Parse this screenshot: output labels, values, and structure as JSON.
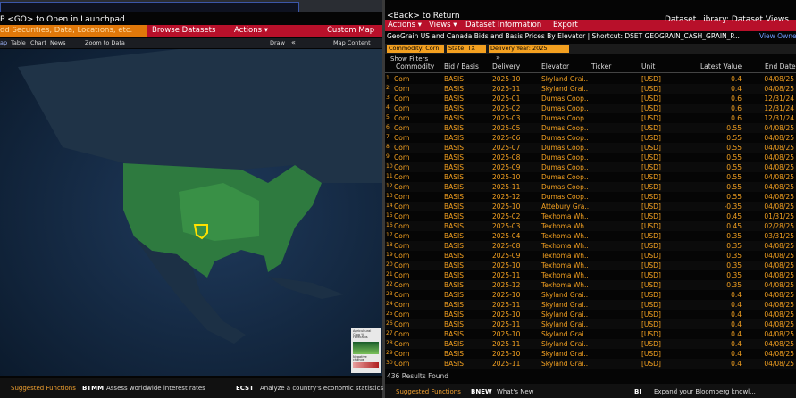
{
  "left": {
    "launchpad": "P <GO> to Open in Launchpad",
    "search_placeholder": "dd Securities, Data, Locations, etc.",
    "browse": "Browse Datasets",
    "actions": "Actions ▾",
    "custom_map": "Custom Map",
    "tabs": [
      "ap",
      "Table",
      "Chart",
      "News"
    ],
    "zoom": "Zoom to Data",
    "draw": "Draw",
    "collapse": "«",
    "map_content": "Map Content",
    "legend": {
      "title": "Agricultural Crop % Forecasts",
      "subtitle": "Negative change"
    },
    "footer": {
      "label": "Suggested Functions",
      "items": [
        {
          "code": "BTMM",
          "text": "Assess worldwide interest rates"
        },
        {
          "code": "ECST",
          "text": "Analyze a country's economic statistics"
        }
      ]
    }
  },
  "right": {
    "back": "<Back> to Return",
    "menu": [
      "Actions ▾",
      "Views ▾",
      "Dataset Information",
      "Export"
    ],
    "library": "Dataset Library: Dataset Views",
    "dataset": "GeoGrain US and Canada Bids and Basis Prices By Elevator | Shortcut: DSET GEOGRAIN_CASH_GRAIN_P...",
    "view_owner": "View Owne",
    "filters": [
      "Commodity: Corn",
      "State: TX",
      "Delivery Year: 2025"
    ],
    "show_filters": "Show Filters",
    "expand": "»",
    "table": {
      "headers": [
        "Commodity",
        "Bid / Basis",
        "Delivery",
        "Elevator",
        "Ticker",
        "Unit",
        "Latest Value",
        "End Date"
      ],
      "rows": [
        [
          "1",
          "Corn",
          "BASIS",
          "2025-10",
          "Skyland Grai..",
          "[USD]",
          "0.4",
          "04/08/25"
        ],
        [
          "2",
          "Corn",
          "BASIS",
          "2025-11",
          "Skyland Grai..",
          "[USD]",
          "0.4",
          "04/08/25"
        ],
        [
          "3",
          "Corn",
          "BASIS",
          "2025-01",
          "Dumas Coop..",
          "[USD]",
          "0.6",
          "12/31/24"
        ],
        [
          "4",
          "Corn",
          "BASIS",
          "2025-02",
          "Dumas Coop..",
          "[USD]",
          "0.6",
          "12/31/24"
        ],
        [
          "5",
          "Corn",
          "BASIS",
          "2025-03",
          "Dumas Coop..",
          "[USD]",
          "0.6",
          "12/31/24"
        ],
        [
          "6",
          "Corn",
          "BASIS",
          "2025-05",
          "Dumas Coop..",
          "[USD]",
          "0.55",
          "04/08/25"
        ],
        [
          "7",
          "Corn",
          "BASIS",
          "2025-06",
          "Dumas Coop..",
          "[USD]",
          "0.55",
          "04/08/25"
        ],
        [
          "8",
          "Corn",
          "BASIS",
          "2025-07",
          "Dumas Coop..",
          "[USD]",
          "0.55",
          "04/08/25"
        ],
        [
          "9",
          "Corn",
          "BASIS",
          "2025-08",
          "Dumas Coop..",
          "[USD]",
          "0.55",
          "04/08/25"
        ],
        [
          "10",
          "Corn",
          "BASIS",
          "2025-09",
          "Dumas Coop..",
          "[USD]",
          "0.55",
          "04/08/25"
        ],
        [
          "11",
          "Corn",
          "BASIS",
          "2025-10",
          "Dumas Coop..",
          "[USD]",
          "0.55",
          "04/08/25"
        ],
        [
          "12",
          "Corn",
          "BASIS",
          "2025-11",
          "Dumas Coop..",
          "[USD]",
          "0.55",
          "04/08/25"
        ],
        [
          "13",
          "Corn",
          "BASIS",
          "2025-12",
          "Dumas Coop..",
          "[USD]",
          "0.55",
          "04/08/25"
        ],
        [
          "14",
          "Corn",
          "BASIS",
          "2025-10",
          "Attebury Gra..",
          "[USD]",
          "-0.35",
          "04/08/25"
        ],
        [
          "15",
          "Corn",
          "BASIS",
          "2025-02",
          "Texhoma Wh..",
          "[USD]",
          "0.45",
          "01/31/25"
        ],
        [
          "16",
          "Corn",
          "BASIS",
          "2025-03",
          "Texhoma Wh..",
          "[USD]",
          "0.45",
          "02/28/25"
        ],
        [
          "17",
          "Corn",
          "BASIS",
          "2025-04",
          "Texhoma Wh..",
          "[USD]",
          "0.35",
          "03/31/25"
        ],
        [
          "18",
          "Corn",
          "BASIS",
          "2025-08",
          "Texhoma Wh..",
          "[USD]",
          "0.35",
          "04/08/25"
        ],
        [
          "19",
          "Corn",
          "BASIS",
          "2025-09",
          "Texhoma Wh..",
          "[USD]",
          "0.35",
          "04/08/25"
        ],
        [
          "20",
          "Corn",
          "BASIS",
          "2025-10",
          "Texhoma Wh..",
          "[USD]",
          "0.35",
          "04/08/25"
        ],
        [
          "21",
          "Corn",
          "BASIS",
          "2025-11",
          "Texhoma Wh..",
          "[USD]",
          "0.35",
          "04/08/25"
        ],
        [
          "22",
          "Corn",
          "BASIS",
          "2025-12",
          "Texhoma Wh..",
          "[USD]",
          "0.35",
          "04/08/25"
        ],
        [
          "23",
          "Corn",
          "BASIS",
          "2025-10",
          "Skyland Grai..",
          "[USD]",
          "0.4",
          "04/08/25"
        ],
        [
          "24",
          "Corn",
          "BASIS",
          "2025-11",
          "Skyland Grai..",
          "[USD]",
          "0.4",
          "04/08/25"
        ],
        [
          "25",
          "Corn",
          "BASIS",
          "2025-10",
          "Skyland Grai..",
          "[USD]",
          "0.4",
          "04/08/25"
        ],
        [
          "26",
          "Corn",
          "BASIS",
          "2025-11",
          "Skyland Grai..",
          "[USD]",
          "0.4",
          "04/08/25"
        ],
        [
          "27",
          "Corn",
          "BASIS",
          "2025-10",
          "Skyland Grai..",
          "[USD]",
          "0.4",
          "04/08/25"
        ],
        [
          "28",
          "Corn",
          "BASIS",
          "2025-11",
          "Skyland Grai..",
          "[USD]",
          "0.4",
          "04/08/25"
        ],
        [
          "29",
          "Corn",
          "BASIS",
          "2025-10",
          "Skyland Grai..",
          "[USD]",
          "0.4",
          "04/08/25"
        ],
        [
          "30",
          "Corn",
          "BASIS",
          "2025-11",
          "Skyland Grai..",
          "[USD]",
          "0.4",
          "04/08/25"
        ]
      ]
    },
    "results": "436 Results Found",
    "footer": {
      "label": "Suggested Functions",
      "items": [
        {
          "code": "BNEW",
          "text": "What's New"
        },
        {
          "code": "BI",
          "text": "Expand your Bloomberg knowl..."
        }
      ]
    }
  }
}
